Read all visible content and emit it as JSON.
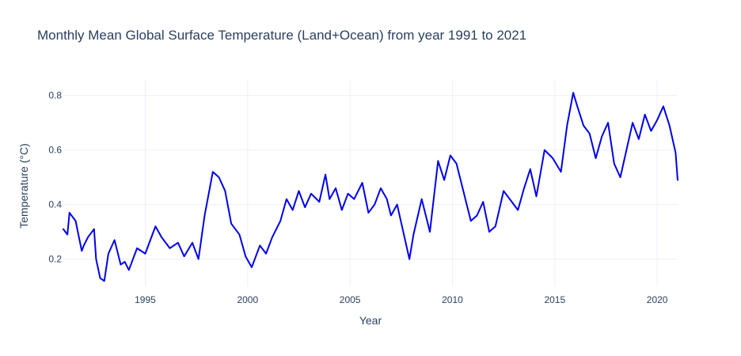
{
  "chart_data": {
    "type": "line",
    "title": "Monthly Mean Global Surface Temperature (Land+Ocean) from year 1991 to 2021",
    "xlabel": "Year",
    "ylabel": "Temperature (°C)",
    "xlim": [
      1991.0,
      2021.0
    ],
    "ylim": [
      0.1,
      0.86
    ],
    "x_ticks": [
      {
        "value": 1995,
        "label": "1995"
      },
      {
        "value": 2000,
        "label": "2000"
      },
      {
        "value": 2005,
        "label": "2005"
      },
      {
        "value": 2010,
        "label": "2010"
      },
      {
        "value": 2015,
        "label": "2015"
      },
      {
        "value": 2020,
        "label": "2020"
      }
    ],
    "y_ticks": [
      {
        "value": 0.2,
        "label": "0.2"
      },
      {
        "value": 0.4,
        "label": "0.4"
      },
      {
        "value": 0.6,
        "label": "0.6"
      },
      {
        "value": 0.8,
        "label": "0.8"
      }
    ],
    "grid": true,
    "legend": "none",
    "series": [
      {
        "color": "#0000ee",
        "x": [
          1991.0,
          1991.2,
          1991.3,
          1991.6,
          1991.9,
          1992.0,
          1992.2,
          1992.5,
          1992.6,
          1992.8,
          1993.0,
          1993.2,
          1993.5,
          1993.8,
          1994.0,
          1994.2,
          1994.6,
          1995.0,
          1995.5,
          1995.8,
          1996.2,
          1996.6,
          1996.9,
          1997.3,
          1997.6,
          1997.9,
          1998.3,
          1998.6,
          1998.9,
          1999.2,
          1999.6,
          1999.9,
          2000.2,
          2000.6,
          2000.9,
          2001.2,
          2001.6,
          2001.9,
          2002.2,
          2002.5,
          2002.8,
          2003.1,
          2003.5,
          2003.8,
          2004.0,
          2004.3,
          2004.6,
          2004.9,
          2005.2,
          2005.6,
          2005.9,
          2006.2,
          2006.5,
          2006.8,
          2007.0,
          2007.3,
          2007.6,
          2007.9,
          2008.1,
          2008.5,
          2008.9,
          2009.3,
          2009.6,
          2009.9,
          2010.2,
          2010.5,
          2010.9,
          2011.2,
          2011.5,
          2011.8,
          2012.1,
          2012.5,
          2012.9,
          2013.2,
          2013.5,
          2013.8,
          2014.1,
          2014.5,
          2014.9,
          2015.3,
          2015.6,
          2015.9,
          2016.1,
          2016.4,
          2016.7,
          2017.0,
          2017.3,
          2017.6,
          2017.9,
          2018.2,
          2018.5,
          2018.8,
          2019.1,
          2019.4,
          2019.7,
          2020.0,
          2020.3,
          2020.6,
          2020.9,
          2021.0
        ],
        "y": [
          0.31,
          0.29,
          0.37,
          0.34,
          0.23,
          0.25,
          0.28,
          0.31,
          0.2,
          0.13,
          0.12,
          0.22,
          0.27,
          0.18,
          0.19,
          0.16,
          0.24,
          0.22,
          0.32,
          0.28,
          0.24,
          0.26,
          0.21,
          0.26,
          0.2,
          0.36,
          0.52,
          0.5,
          0.45,
          0.33,
          0.29,
          0.21,
          0.17,
          0.25,
          0.22,
          0.28,
          0.34,
          0.42,
          0.38,
          0.45,
          0.39,
          0.44,
          0.41,
          0.51,
          0.42,
          0.46,
          0.38,
          0.44,
          0.42,
          0.48,
          0.37,
          0.4,
          0.46,
          0.42,
          0.36,
          0.4,
          0.3,
          0.2,
          0.29,
          0.42,
          0.3,
          0.56,
          0.49,
          0.58,
          0.55,
          0.46,
          0.34,
          0.36,
          0.41,
          0.3,
          0.32,
          0.45,
          0.41,
          0.38,
          0.46,
          0.53,
          0.43,
          0.6,
          0.57,
          0.52,
          0.69,
          0.81,
          0.76,
          0.69,
          0.66,
          0.57,
          0.65,
          0.7,
          0.55,
          0.5,
          0.6,
          0.7,
          0.64,
          0.73,
          0.67,
          0.71,
          0.76,
          0.69,
          0.59,
          0.49
        ]
      }
    ]
  }
}
